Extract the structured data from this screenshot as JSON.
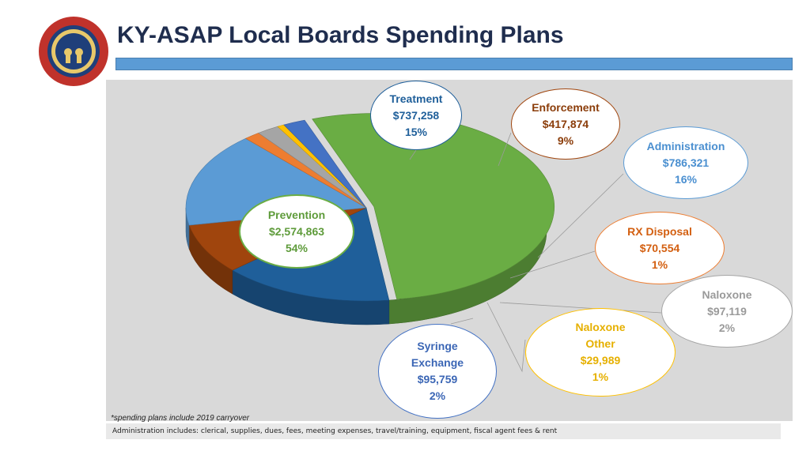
{
  "header": {
    "title": "KY-ASAP Local Boards Spending Plans"
  },
  "chart_data": {
    "type": "pie",
    "title": "",
    "slices": [
      {
        "label": "Prevention",
        "amount": "$2,574,863",
        "percent": "54%",
        "value": 2574863,
        "color": "#6aad44",
        "label_color": "#5e9b3a",
        "border_color": "#6aad44"
      },
      {
        "label": "Treatment",
        "amount": "$737,258",
        "percent": "15%",
        "value": 737258,
        "color": "#1f5f9a",
        "label_color": "#1f5f9a",
        "border_color": "#1f5f9a"
      },
      {
        "label": "Enforcement",
        "amount": "$417,874",
        "percent": "9%",
        "value": 417874,
        "color": "#a0450d",
        "label_color": "#8b3d0a",
        "border_color": "#a0450d"
      },
      {
        "label": "Administration",
        "amount": "$786,321",
        "percent": "16%",
        "value": 786321,
        "color": "#5b9bd5",
        "label_color": "#4a8fd0",
        "border_color": "#5b9bd5"
      },
      {
        "label": "RX Disposal",
        "amount": "$70,554",
        "percent": "1%",
        "value": 70554,
        "color": "#ed7d31",
        "label_color": "#d35f10",
        "border_color": "#ed7d31"
      },
      {
        "label": "Naloxone",
        "amount": "$97,119",
        "percent": "2%",
        "value": 97119,
        "color": "#a5a5a5",
        "label_color": "#9a9a9a",
        "border_color": "#a5a5a5"
      },
      {
        "label": "Naloxone Other",
        "amount": "$29,989",
        "percent": "1%",
        "value": 29989,
        "color": "#ffc000",
        "label_color": "#e6b000",
        "border_color": "#ffc000"
      },
      {
        "label": "Syringe Exchange",
        "amount": "$95,759",
        "percent": "2%",
        "value": 95759,
        "color": "#4472c4",
        "label_color": "#3b66b5",
        "border_color": "#4472c4"
      }
    ]
  },
  "footer": {
    "footnote": "*spending plans include 2019 carryover",
    "note": "Administration includes: clerical, supplies, dues, fees, meeting expenses, travel/training, equipment, fiscal agent fees & rent"
  }
}
